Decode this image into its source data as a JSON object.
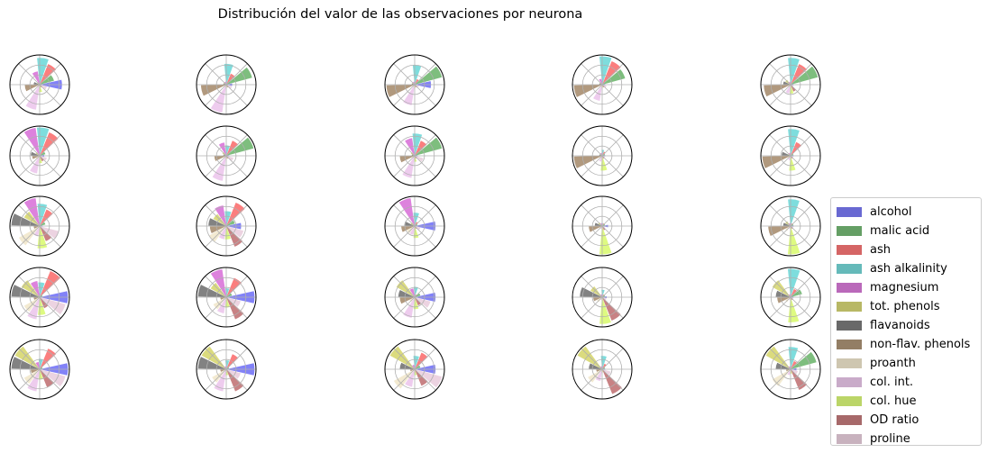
{
  "chart_data": {
    "type": "polar-bar-grid",
    "title": "Distribución del valor de las observaciones por neurona",
    "rows": 5,
    "cols": 5,
    "radial_max": 1.0,
    "grid_on": true,
    "legend_placement": "right",
    "features": [
      {
        "name": "alcohol",
        "color": "#7b7bf7"
      },
      {
        "name": "malic acid",
        "color": "#77bb77"
      },
      {
        "name": "ash",
        "color": "#fb7777"
      },
      {
        "name": "ash alkalinity",
        "color": "#77dbdb"
      },
      {
        "name": "magnesium",
        "color": "#db7bdb"
      },
      {
        "name": "tot. phenols",
        "color": "#d9d977"
      },
      {
        "name": "flavanoids",
        "color": "#7b7b7b"
      },
      {
        "name": "non-flav. phenols",
        "color": "#ad9477"
      },
      {
        "name": "proanth",
        "color": "#f2e9cf"
      },
      {
        "name": "col. int.",
        "color": "#edc9ed"
      },
      {
        "name": "col. hue",
        "color": "#dcfa7a"
      },
      {
        "name": "OD ratio",
        "color": "#c57b7d"
      },
      {
        "name": "proline",
        "color": "#ebd1df"
      }
    ],
    "neurons": [
      [
        [
          0.75,
          0.5,
          0.75,
          0.9,
          0.45,
          0.1,
          0.2,
          0.5,
          0.1,
          0.85,
          0.25,
          0.1,
          0.25
        ],
        [
          0.2,
          0.9,
          0.4,
          0.7,
          0.1,
          0.1,
          0.1,
          0.85,
          0.1,
          0.95,
          0.1,
          0.1,
          0.2
        ],
        [
          0.55,
          0.95,
          0.2,
          0.65,
          0.1,
          0.1,
          0.1,
          0.95,
          0.1,
          0.7,
          0.1,
          0.1,
          0.15
        ],
        [
          0.1,
          0.8,
          0.85,
          0.95,
          0.2,
          0.1,
          0.1,
          0.95,
          0.1,
          0.55,
          0.1,
          0.1,
          0.15
        ],
        [
          0.1,
          0.95,
          0.75,
          0.9,
          0.1,
          0.2,
          0.25,
          0.9,
          0.1,
          0.3,
          0.3,
          0.25,
          0.1
        ]
      ],
      [
        [
          0.15,
          0.2,
          0.85,
          0.95,
          0.95,
          0.15,
          0.3,
          0.25,
          0.15,
          0.6,
          0.25,
          0.2,
          0.25
        ],
        [
          0.1,
          0.95,
          0.55,
          0.35,
          0.45,
          0.15,
          0.1,
          0.4,
          0.1,
          0.85,
          0.1,
          0.1,
          0.25
        ],
        [
          0.1,
          0.95,
          0.55,
          0.75,
          0.6,
          0.15,
          0.1,
          0.5,
          0.1,
          0.75,
          0.2,
          0.1,
          0.3
        ],
        [
          0.1,
          0.1,
          0.15,
          0.2,
          0.1,
          0.1,
          0.1,
          0.95,
          0.1,
          0.2,
          0.5,
          0.1,
          0.1
        ],
        [
          0.1,
          0.1,
          0.5,
          0.9,
          0.1,
          0.1,
          0.3,
          0.95,
          0.1,
          0.15,
          0.5,
          0.1,
          0.1
        ]
      ],
      [
        [
          0.1,
          0.2,
          0.6,
          0.75,
          0.95,
          0.6,
          0.95,
          0.2,
          0.8,
          0.35,
          0.75,
          0.55,
          0.65
        ],
        [
          0.5,
          0.3,
          0.85,
          0.5,
          0.7,
          0.5,
          0.6,
          0.55,
          0.65,
          0.45,
          0.45,
          0.75,
          0.6
        ],
        [
          0.7,
          0.1,
          0.15,
          0.45,
          0.95,
          0.15,
          0.35,
          0.45,
          0.3,
          0.3,
          0.4,
          0.1,
          0.2
        ],
        [
          0.2,
          0.1,
          0.1,
          0.1,
          0.1,
          0.15,
          0.25,
          0.45,
          0.1,
          0.1,
          0.95,
          0.15,
          0.1
        ],
        [
          0.1,
          0.1,
          0.1,
          0.9,
          0.1,
          0.2,
          0.25,
          0.75,
          0.2,
          0.1,
          0.95,
          0.1,
          0.1
        ]
      ],
      [
        [
          0.95,
          0.1,
          0.95,
          0.5,
          0.55,
          0.7,
          0.95,
          0.2,
          0.6,
          0.75,
          0.6,
          0.4,
          0.9
        ],
        [
          0.95,
          0.2,
          0.7,
          0.3,
          0.95,
          0.6,
          0.95,
          0.2,
          0.5,
          0.55,
          0.35,
          0.8,
          0.5
        ],
        [
          0.7,
          0.2,
          0.1,
          0.35,
          0.3,
          0.7,
          0.55,
          0.5,
          0.2,
          0.7,
          0.4,
          0.3,
          0.55
        ],
        [
          0.15,
          0.1,
          0.1,
          0.25,
          0.1,
          0.45,
          0.75,
          0.3,
          0.2,
          0.1,
          0.9,
          0.85,
          0.15
        ],
        [
          0.1,
          0.4,
          0.3,
          0.95,
          0.1,
          0.7,
          0.5,
          0.45,
          0.2,
          0.1,
          0.85,
          0.1,
          0.1
        ]
      ],
      [
        [
          0.95,
          0.1,
          0.75,
          0.35,
          0.25,
          0.95,
          0.95,
          0.3,
          0.6,
          0.75,
          0.35,
          0.65,
          0.9
        ],
        [
          0.95,
          0.1,
          0.55,
          0.3,
          0.1,
          0.95,
          0.95,
          0.2,
          0.55,
          0.75,
          0.2,
          0.8,
          0.5
        ],
        [
          0.7,
          0.2,
          0.6,
          0.45,
          0.15,
          0.95,
          0.5,
          0.15,
          0.8,
          0.6,
          0.2,
          0.6,
          0.95
        ],
        [
          0.1,
          0.1,
          0.2,
          0.45,
          0.1,
          0.95,
          0.45,
          0.2,
          0.55,
          0.4,
          0.1,
          0.9,
          0.3
        ],
        [
          0.2,
          0.9,
          0.3,
          0.75,
          0.1,
          0.95,
          0.5,
          0.15,
          0.7,
          0.2,
          0.15,
          0.75,
          0.25
        ]
      ]
    ]
  }
}
